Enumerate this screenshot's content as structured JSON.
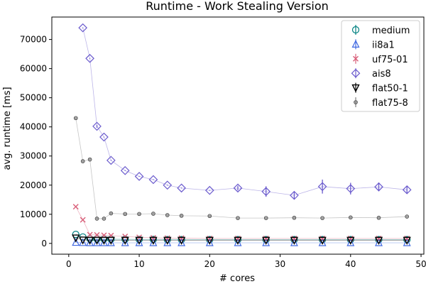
{
  "chart_data": {
    "type": "line",
    "title": "Runtime - Work Stealing Version",
    "xlabel": "# cores",
    "ylabel": "avg. runtime [ms]",
    "xlim": [
      -2.4,
      50.4
    ],
    "ylim": [
      -3700,
      77700
    ],
    "xticks": [
      0,
      10,
      20,
      30,
      40,
      50
    ],
    "yticks": [
      0,
      10000,
      20000,
      30000,
      40000,
      50000,
      60000,
      70000
    ],
    "grid": false,
    "legend_position": "top-right",
    "series": [
      {
        "name": "medium",
        "color": "#008080",
        "marker": "circle",
        "x": [
          1,
          2,
          3,
          4,
          5,
          6,
          8,
          10,
          12,
          14,
          16,
          20,
          24,
          28,
          32,
          36,
          40,
          44,
          48
        ],
        "y": [
          3100,
          2200,
          1600,
          1550,
          1500,
          1450,
          1400,
          1350,
          1350,
          1300,
          1300,
          1300,
          1300,
          1300,
          1300,
          1300,
          1300,
          1300,
          1300
        ],
        "err": [
          0,
          0,
          0,
          0,
          0,
          0,
          0,
          0,
          0,
          0,
          0,
          0,
          0,
          0,
          0,
          0,
          0,
          0,
          0
        ]
      },
      {
        "name": "ii8a1",
        "color": "#4169e1",
        "marker": "triangle-up",
        "x": [
          1,
          2,
          3,
          4,
          5,
          6,
          8,
          10,
          12,
          14,
          16,
          20,
          24,
          28,
          32,
          36,
          40,
          44,
          48
        ],
        "y": [
          300,
          250,
          200,
          200,
          200,
          200,
          200,
          200,
          200,
          200,
          200,
          200,
          200,
          200,
          200,
          200,
          200,
          200,
          200
        ],
        "err": [
          0,
          0,
          0,
          0,
          0,
          0,
          0,
          0,
          0,
          0,
          0,
          0,
          0,
          0,
          0,
          0,
          0,
          0,
          0
        ]
      },
      {
        "name": "uf75-01",
        "color": "#d9607a",
        "marker": "x",
        "x": [
          1,
          2,
          3,
          4,
          5,
          6,
          8,
          10,
          12,
          14,
          16,
          20,
          24,
          28,
          32,
          36,
          40,
          44,
          48
        ],
        "y": [
          12600,
          8100,
          3000,
          2900,
          2800,
          2700,
          2400,
          2100,
          1900,
          1800,
          1800,
          1700,
          1700,
          1700,
          1700,
          1700,
          1700,
          1700,
          1700
        ],
        "err": [
          0,
          0,
          0,
          0,
          0,
          0,
          0,
          0,
          0,
          0,
          0,
          0,
          0,
          0,
          0,
          0,
          0,
          0,
          0
        ]
      },
      {
        "name": "ais8",
        "color": "#6a5acd",
        "marker": "diamond",
        "x": [
          2,
          3,
          4,
          5,
          6,
          8,
          10,
          12,
          14,
          16,
          20,
          24,
          28,
          32,
          36,
          40,
          44,
          48
        ],
        "y": [
          74000,
          63500,
          40200,
          36500,
          28500,
          25000,
          23000,
          21900,
          20000,
          19000,
          18200,
          19000,
          17800,
          16500,
          19500,
          18800,
          19400,
          18400
        ],
        "err": [
          0,
          0,
          500,
          0,
          0,
          0,
          0,
          0,
          0,
          0,
          0,
          800,
          1800,
          1200,
          2400,
          2000,
          1500,
          1200
        ]
      },
      {
        "name": "flat50-1",
        "color": "#000000",
        "marker": "triangle-down",
        "x": [
          1,
          2,
          3,
          4,
          5,
          6,
          8,
          10,
          12,
          14,
          16,
          20,
          24,
          28,
          32,
          36,
          40,
          44,
          48
        ],
        "y": [
          1900,
          1200,
          1100,
          1100,
          1100,
          1100,
          1100,
          1100,
          1100,
          1100,
          1100,
          1100,
          1100,
          1100,
          1100,
          1100,
          1100,
          1100,
          1100
        ],
        "err": [
          0,
          0,
          0,
          0,
          0,
          0,
          0,
          0,
          0,
          0,
          0,
          0,
          0,
          0,
          0,
          0,
          0,
          0,
          0
        ]
      },
      {
        "name": "flat75-8",
        "color": "#808080",
        "marker": "dot",
        "x": [
          1,
          2,
          3,
          4,
          5,
          6,
          8,
          10,
          12,
          14,
          16,
          20,
          24,
          28,
          32,
          36,
          40,
          44,
          48
        ],
        "y": [
          43000,
          28200,
          28800,
          8500,
          8500,
          10300,
          10100,
          10100,
          10200,
          9700,
          9500,
          9400,
          8700,
          8700,
          8800,
          8700,
          8900,
          8800,
          9200
        ],
        "err": [
          0,
          0,
          0,
          0,
          0,
          0,
          0,
          0,
          0,
          0,
          0,
          0,
          0,
          0,
          0,
          0,
          0,
          0,
          0
        ]
      }
    ]
  }
}
